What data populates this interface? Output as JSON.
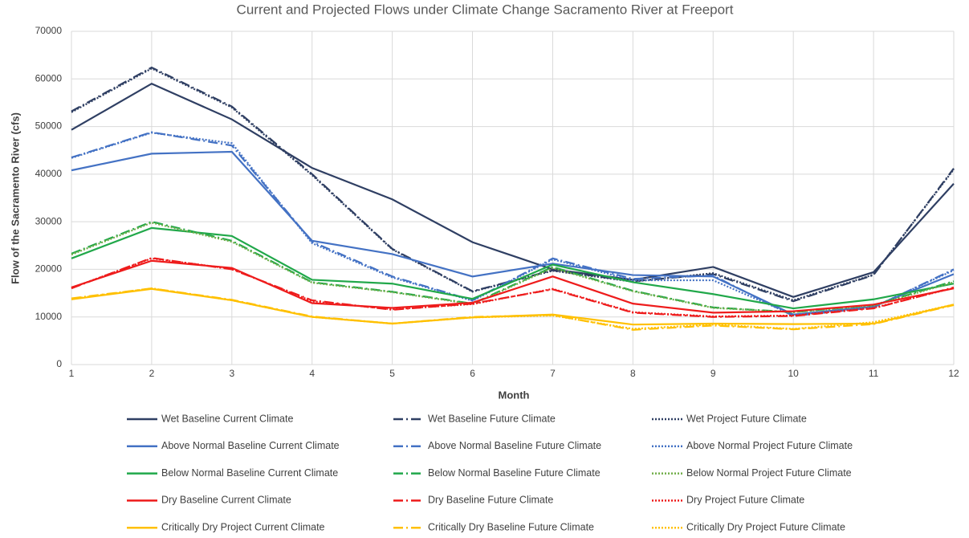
{
  "chart_data": {
    "type": "line",
    "title": "Current and Projected Flows under Climate Change Sacramento River at Freeport",
    "x_label": "Month",
    "y_label": "Flow of the Sacramento River (cfs)",
    "x": [
      1,
      2,
      3,
      4,
      5,
      6,
      7,
      8,
      9,
      10,
      11,
      12
    ],
    "xlim": [
      1,
      12
    ],
    "xticks": [
      1,
      2,
      3,
      4,
      5,
      6,
      7,
      8,
      9,
      10,
      11,
      12
    ],
    "ylim": [
      0,
      70000
    ],
    "yticks": [
      0,
      10000,
      20000,
      30000,
      40000,
      50000,
      60000,
      70000
    ],
    "grid": true,
    "legend": "bottom",
    "series": [
      {
        "name": "Wet Baseline Current Climate",
        "color": "#2f3f63",
        "style": "solid",
        "values": [
          49300,
          59000,
          51500,
          41300,
          34700,
          25700,
          20000,
          17800,
          20500,
          14200,
          19400,
          38000
        ]
      },
      {
        "name": "Wet Baseline Future Climate",
        "color": "#2f3f63",
        "style": "dashed",
        "values": [
          53200,
          62400,
          54200,
          40000,
          24300,
          15400,
          19800,
          17500,
          19000,
          13300,
          18800,
          41200
        ]
      },
      {
        "name": "Wet Project Future Climate",
        "color": "#2f3f63",
        "style": "dotted",
        "values": [
          53000,
          62200,
          54000,
          39800,
          24200,
          15300,
          19700,
          17400,
          19200,
          13500,
          18900,
          41000
        ]
      },
      {
        "name": "Above Normal Baseline Current Climate",
        "color": "#4472c4",
        "style": "solid",
        "values": [
          40800,
          44300,
          44700,
          26000,
          23200,
          18500,
          21200,
          18800,
          18500,
          10500,
          12200,
          19000
        ]
      },
      {
        "name": "Above Normal Baseline Future Climate",
        "color": "#4472c4",
        "style": "dashed",
        "values": [
          43500,
          48800,
          46000,
          25800,
          18500,
          13500,
          22300,
          18000,
          18700,
          10200,
          12000,
          20000
        ]
      },
      {
        "name": "Above Normal Project Future Climate",
        "color": "#4472c4",
        "style": "dotted",
        "values": [
          43400,
          48700,
          46500,
          25500,
          18300,
          13400,
          22100,
          17700,
          17700,
          10400,
          12100,
          19800
        ]
      },
      {
        "name": "Below Normal Baseline Current Climate",
        "color": "#21a84a",
        "style": "solid",
        "values": [
          22300,
          28700,
          27000,
          17800,
          17000,
          13800,
          21000,
          17300,
          14800,
          11800,
          13700,
          17000
        ]
      },
      {
        "name": "Below Normal Baseline Future Climate",
        "color": "#21a84a",
        "style": "dashed",
        "values": [
          23300,
          30000,
          26000,
          17300,
          15300,
          12800,
          20500,
          15500,
          12000,
          11000,
          12500,
          17500
        ]
      },
      {
        "name": "Below Normal Project Future Climate",
        "color": "#70ad47",
        "style": "dotted",
        "values": [
          23100,
          29800,
          25800,
          17200,
          15200,
          12700,
          20300,
          15400,
          11900,
          11000,
          12400,
          17300
        ]
      },
      {
        "name": "Dry Baseline Current Climate",
        "color": "#ee1c1c",
        "style": "solid",
        "values": [
          16200,
          21800,
          20300,
          12900,
          11900,
          13000,
          18500,
          12800,
          10900,
          11200,
          12600,
          16000
        ]
      },
      {
        "name": "Dry Baseline Future Climate",
        "color": "#ee1c1c",
        "style": "dashed",
        "values": [
          16000,
          22400,
          20000,
          13500,
          11500,
          12800,
          15800,
          10900,
          10000,
          10200,
          11800,
          16200
        ]
      },
      {
        "name": "Dry Project Future Climate",
        "color": "#ee1c1c",
        "style": "dotted",
        "values": [
          16100,
          22300,
          20100,
          13300,
          11600,
          12700,
          15900,
          11000,
          10100,
          10300,
          11900,
          16100
        ]
      },
      {
        "name": "Critically Dry Project Current Climate",
        "color": "#ffc000",
        "style": "solid",
        "values": [
          13700,
          15900,
          13500,
          10000,
          8600,
          9900,
          10500,
          8400,
          8600,
          8500,
          8600,
          12600
        ]
      },
      {
        "name": "Critically Dry Baseline Future Climate",
        "color": "#ffc000",
        "style": "dashed",
        "values": [
          13900,
          16000,
          13600,
          10100,
          8600,
          10000,
          10400,
          7300,
          8200,
          7400,
          8500,
          12500
        ]
      },
      {
        "name": "Critically Dry Project Future Climate",
        "color": "#ffc000",
        "style": "dotted",
        "values": [
          13800,
          16000,
          13500,
          10000,
          8600,
          9900,
          10300,
          7500,
          8400,
          7500,
          8900,
          12600
        ]
      }
    ]
  }
}
